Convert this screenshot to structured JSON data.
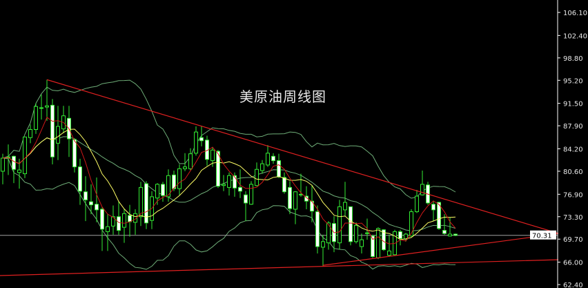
{
  "chart_data": {
    "type": "candlestick",
    "title": "美原油周线图",
    "ylim": [
      62.4,
      108.1
    ],
    "y_ticks": [
      "106.10",
      "102.40",
      "98.80",
      "95.20",
      "91.50",
      "87.90",
      "84.20",
      "80.60",
      "76.90",
      "73.30",
      "69.70",
      "66.00",
      "62.40"
    ],
    "last_price": "70.31",
    "grid": false,
    "ohlc_order": [
      "open",
      "high",
      "low",
      "close"
    ],
    "candles": [
      [
        80.6,
        83.4,
        78.5,
        82.7
      ],
      [
        82.8,
        84.9,
        80.0,
        82.9
      ],
      [
        83.0,
        83.1,
        78.7,
        80.9
      ],
      [
        80.4,
        82.6,
        77.8,
        80.8
      ],
      [
        80.2,
        86.1,
        79.5,
        86.1
      ],
      [
        86.0,
        88.1,
        85.1,
        87.3
      ],
      [
        87.3,
        91.5,
        86.6,
        91.0
      ],
      [
        90.7,
        92.9,
        88.9,
        90.8
      ],
      [
        90.9,
        95.3,
        88.7,
        91.1
      ],
      [
        91.2,
        92.2,
        81.7,
        82.9
      ],
      [
        85.1,
        91.1,
        82.4,
        87.8
      ],
      [
        87.4,
        91.1,
        86.7,
        89.5
      ],
      [
        89.1,
        91.1,
        82.9,
        85.8
      ],
      [
        85.7,
        85.9,
        80.4,
        81.3
      ],
      [
        81.3,
        82.6,
        75.2,
        77.4
      ],
      [
        77.3,
        79.8,
        72.6,
        76.0
      ],
      [
        75.7,
        78.5,
        73.7,
        75.2
      ],
      [
        75.3,
        79.6,
        72.4,
        74.4
      ],
      [
        74.5,
        74.8,
        67.8,
        71.3
      ],
      [
        70.9,
        73.7,
        67.8,
        71.7
      ],
      [
        71.8,
        75.1,
        70.4,
        73.3
      ],
      [
        73.3,
        75.7,
        70.4,
        71.1
      ],
      [
        71.6,
        74.5,
        69.1,
        73.8
      ],
      [
        73.5,
        75.2,
        70.1,
        72.5
      ],
      [
        72.4,
        74.5,
        70.4,
        73.8
      ],
      [
        73.3,
        78.9,
        71.8,
        78.0
      ],
      [
        78.6,
        79.0,
        71.3,
        72.3
      ],
      [
        72.7,
        77.4,
        71.3,
        76.5
      ],
      [
        76.3,
        78.7,
        75.2,
        78.5
      ],
      [
        78.5,
        78.9,
        75.7,
        76.7
      ],
      [
        76.5,
        80.9,
        75.7,
        79.9
      ],
      [
        80.0,
        80.7,
        77.4,
        77.8
      ],
      [
        77.8,
        81.7,
        76.8,
        81.0
      ],
      [
        81.0,
        83.5,
        80.6,
        81.3
      ],
      [
        81.0,
        84.3,
        80.7,
        83.4
      ],
      [
        83.5,
        87.8,
        83.1,
        86.9
      ],
      [
        86.0,
        87.8,
        84.6,
        85.5
      ],
      [
        85.6,
        86.3,
        81.5,
        82.5
      ],
      [
        82.3,
        84.5,
        81.3,
        84.0
      ],
      [
        83.8,
        84.0,
        77.9,
        78.2
      ],
      [
        78.3,
        80.0,
        77.4,
        78.5
      ],
      [
        78.0,
        80.4,
        76.7,
        79.9
      ],
      [
        79.9,
        80.4,
        76.5,
        77.9
      ],
      [
        78.0,
        80.9,
        76.3,
        77.4
      ],
      [
        76.8,
        77.4,
        72.6,
        75.5
      ],
      [
        75.3,
        79.0,
        75.2,
        78.5
      ],
      [
        78.3,
        82.0,
        78.2,
        80.9
      ],
      [
        80.7,
        82.4,
        80.2,
        81.8
      ],
      [
        81.6,
        84.8,
        81.3,
        83.5
      ],
      [
        83.0,
        83.5,
        81.8,
        82.3
      ],
      [
        82.3,
        83.4,
        79.5,
        79.7
      ],
      [
        79.6,
        80.4,
        77.0,
        77.3
      ],
      [
        78.0,
        79.0,
        73.7,
        74.6
      ],
      [
        74.5,
        77.4,
        72.1,
        77.3
      ],
      [
        76.9,
        80.2,
        76.5,
        76.8
      ],
      [
        76.6,
        78.2,
        74.5,
        75.8
      ],
      [
        75.8,
        78.4,
        72.4,
        74.2
      ],
      [
        74.1,
        75.1,
        67.4,
        68.5
      ],
      [
        68.4,
        70.4,
        65.4,
        69.3
      ],
      [
        69.1,
        72.6,
        68.0,
        72.3
      ],
      [
        72.2,
        73.4,
        67.6,
        69.3
      ],
      [
        69.1,
        76.0,
        68.0,
        74.9
      ],
      [
        74.4,
        78.9,
        73.4,
        75.6
      ],
      [
        74.9,
        74.9,
        68.7,
        69.3
      ],
      [
        69.3,
        72.4,
        69.0,
        71.9
      ],
      [
        68.5,
        70.6,
        67.4,
        69.6
      ],
      [
        70.7,
        73.0,
        69.6,
        70.6
      ],
      [
        70.2,
        70.4,
        66.7,
        66.9
      ],
      [
        66.7,
        71.6,
        66.5,
        71.4
      ],
      [
        71.2,
        71.3,
        67.8,
        68.0
      ],
      [
        67.1,
        70.4,
        66.9,
        67.8
      ],
      [
        67.2,
        71.2,
        67.1,
        70.9
      ],
      [
        70.9,
        71.2,
        68.7,
        69.8
      ],
      [
        69.7,
        70.7,
        69.3,
        70.5
      ],
      [
        70.2,
        74.5,
        70.1,
        74.1
      ],
      [
        74.1,
        77.6,
        73.9,
        76.6
      ],
      [
        76.8,
        80.7,
        76.7,
        78.5
      ],
      [
        78.4,
        78.9,
        75.2,
        75.5
      ],
      [
        75.3,
        75.9,
        72.6,
        74.4
      ],
      [
        75.6,
        75.7,
        71.2,
        71.4
      ],
      [
        71.1,
        73.7,
        70.4,
        70.6
      ],
      [
        70.2,
        73.2,
        70.1,
        70.5
      ],
      [
        70.5,
        70.6,
        70.2,
        70.3
      ]
    ],
    "indicators": {
      "ma_fast": {
        "period": 5,
        "color": "#d01818"
      },
      "ma_slow": {
        "period": 10,
        "color": "#ffff66"
      },
      "bollinger": {
        "period": 20,
        "k": 2,
        "color": "#6fae78"
      }
    },
    "trendlines": [
      {
        "from": [
          8,
          95.3
        ],
        "to": [
          100.75,
          70.6
        ],
        "color": "#e02020"
      },
      {
        "from": [
          58,
          65.5
        ],
        "to": [
          100.75,
          70.6
        ],
        "color": "#e02020"
      },
      {
        "from": [
          -0.5,
          63.85
        ],
        "to": [
          100.75,
          66.4
        ],
        "color": "#e02020"
      }
    ],
    "colors": {
      "up": "#33ee33",
      "down_fill": "#ffffff",
      "axis": "#ffffff",
      "last_line": "#a0a0a0"
    }
  }
}
